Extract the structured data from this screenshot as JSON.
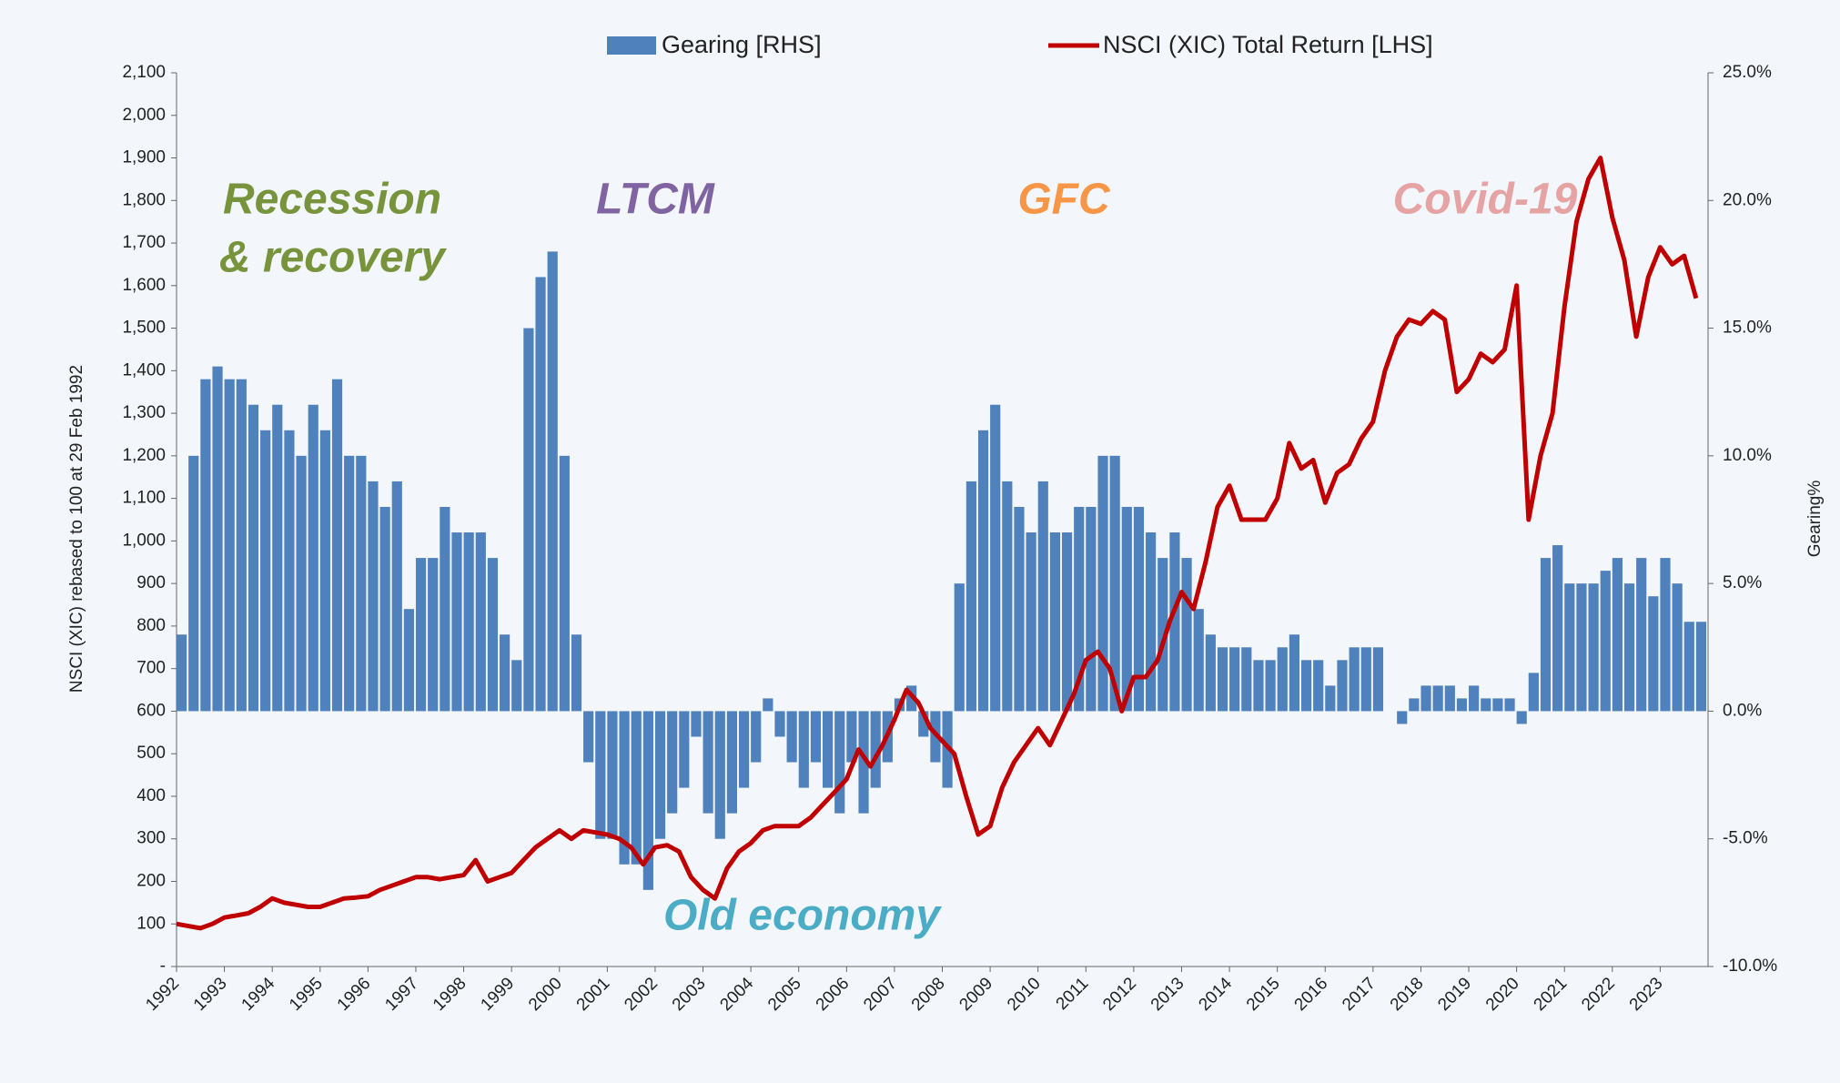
{
  "chart_data": {
    "type": "bar-line",
    "legend_position": "top",
    "y_label": "NSCI (XIC) rebased to 100 at 29 Feb 1992",
    "y2_label": "Gearing%",
    "annotations": [
      {
        "lines": [
          "Recession",
          "& recovery"
        ],
        "color": "#77933c"
      },
      {
        "lines": [
          "LTCM"
        ],
        "color": "#8064a2"
      },
      {
        "lines": [
          "GFC"
        ],
        "color": "#f79646"
      },
      {
        "lines": [
          "Covid-19"
        ],
        "color": "#e6a3a3"
      },
      {
        "lines": [
          "Old economy"
        ],
        "color": "#4bacc6"
      }
    ],
    "xlim": [
      1992,
      2024
    ],
    "xticks": [
      1992,
      1993,
      1994,
      1995,
      1996,
      1997,
      1998,
      1999,
      2000,
      2001,
      2002,
      2003,
      2004,
      2005,
      2006,
      2007,
      2008,
      2009,
      2010,
      2011,
      2012,
      2013,
      2014,
      2015,
      2016,
      2017,
      2018,
      2019,
      2020,
      2021,
      2022,
      2023
    ],
    "ylim": [
      0,
      2100
    ],
    "yticks": [
      {
        "value": 0,
        "label": "-"
      },
      100,
      200,
      300,
      400,
      500,
      600,
      700,
      800,
      900,
      {
        "value": 1000,
        "label": "1,000"
      },
      {
        "value": 1100,
        "label": "1,100"
      },
      {
        "value": 1200,
        "label": "1,200"
      },
      {
        "value": 1300,
        "label": "1,300"
      },
      {
        "value": 1400,
        "label": "1,400"
      },
      {
        "value": 1500,
        "label": "1,500"
      },
      {
        "value": 1600,
        "label": "1,600"
      },
      {
        "value": 1700,
        "label": "1,700"
      },
      {
        "value": 1800,
        "label": "1,800"
      },
      {
        "value": 1900,
        "label": "1,900"
      },
      {
        "value": 2000,
        "label": "2,000"
      },
      {
        "value": 2100,
        "label": "2,100"
      }
    ],
    "y2lim": [
      -10,
      25
    ],
    "y2ticks": [
      {
        "value": -10,
        "label": "-10.0%"
      },
      {
        "value": -5,
        "label": "-5.0%"
      },
      {
        "value": 0,
        "label": "0.0%"
      },
      {
        "value": 5,
        "label": "5.0%"
      },
      {
        "value": 10,
        "label": "10.0%"
      },
      {
        "value": 15,
        "label": "15.0%"
      },
      {
        "value": 20,
        "label": "20.0%"
      },
      {
        "value": 25,
        "label": "25.0%"
      }
    ],
    "x": [
      1992,
      1992.25,
      1992.5,
      1992.75,
      1993,
      1993.25,
      1993.5,
      1993.75,
      1994,
      1994.25,
      1994.5,
      1994.75,
      1995,
      1995.25,
      1995.5,
      1995.75,
      1996,
      1996.25,
      1996.5,
      1996.75,
      1997,
      1997.25,
      1997.5,
      1997.75,
      1998,
      1998.25,
      1998.5,
      1998.75,
      1999,
      1999.25,
      1999.5,
      1999.75,
      2000,
      2000.25,
      2000.5,
      2000.75,
      2001,
      2001.25,
      2001.5,
      2001.75,
      2002,
      2002.25,
      2002.5,
      2002.75,
      2003,
      2003.25,
      2003.5,
      2003.75,
      2004,
      2004.25,
      2004.5,
      2004.75,
      2005,
      2005.25,
      2005.5,
      2005.75,
      2006,
      2006.25,
      2006.5,
      2006.75,
      2007,
      2007.25,
      2007.5,
      2007.75,
      2008,
      2008.25,
      2008.5,
      2008.75,
      2009,
      2009.25,
      2009.5,
      2009.75,
      2010,
      2010.25,
      2010.5,
      2010.75,
      2011,
      2011.25,
      2011.5,
      2011.75,
      2012,
      2012.25,
      2012.5,
      2012.75,
      2013,
      2013.25,
      2013.5,
      2013.75,
      2014,
      2014.25,
      2014.5,
      2014.75,
      2015,
      2015.25,
      2015.5,
      2015.75,
      2016,
      2016.25,
      2016.5,
      2016.75,
      2017,
      2017.25,
      2017.5,
      2017.75,
      2018,
      2018.25,
      2018.5,
      2018.75,
      2019,
      2019.25,
      2019.5,
      2019.75,
      2020,
      2020.25,
      2020.5,
      2020.75,
      2021,
      2021.25,
      2021.5,
      2021.75,
      2022,
      2022.25,
      2022.5,
      2022.75,
      2023,
      2023.25,
      2023.5,
      2023.75
    ],
    "series": [
      {
        "name": "Gearing [RHS]",
        "type": "bar",
        "axis": "y2",
        "color": "#4f81bd",
        "values": [
          3,
          10,
          13,
          13.5,
          13,
          13,
          12,
          11,
          12,
          11,
          10,
          12,
          11,
          13,
          10,
          10,
          9,
          8,
          9,
          4,
          6,
          6,
          8,
          7,
          7,
          7,
          6,
          3,
          2,
          15,
          17,
          18,
          10,
          3,
          -2,
          -5,
          -5,
          -6,
          -6,
          -7,
          -5,
          -4,
          -3,
          -1,
          -4,
          -5,
          -4,
          -3,
          -2,
          0.5,
          -1,
          -2,
          -3,
          -2,
          -3,
          -4,
          -2,
          -4,
          -3,
          -2,
          0.5,
          1,
          -1,
          -2,
          -3,
          5,
          9,
          11,
          12,
          9,
          8,
          7,
          9,
          7,
          7,
          8,
          8,
          10,
          10,
          8,
          8,
          7,
          6,
          7,
          6,
          4,
          3,
          2.5,
          2.5,
          2.5,
          2,
          2,
          2.5,
          3,
          2,
          2,
          1,
          2,
          2.5,
          2.5,
          2.5,
          0,
          -0.5,
          0.5,
          1,
          1,
          1,
          0.5,
          1,
          0.5,
          0.5,
          0.5,
          -0.5,
          1.5,
          6,
          6.5,
          5,
          5,
          5,
          5.5,
          6,
          5,
          6,
          4.5,
          6,
          5,
          3.5,
          3.5
        ]
      },
      {
        "name": "NSCI (XIC) Total Return [LHS]",
        "type": "line",
        "color": "#c00000",
        "values": [
          100,
          95,
          90,
          100,
          115,
          120,
          125,
          140,
          160,
          150,
          145,
          140,
          140,
          150,
          160,
          162,
          165,
          180,
          190,
          200,
          210,
          210,
          205,
          210,
          215,
          250,
          200,
          210,
          220,
          250,
          280,
          300,
          320,
          300,
          320,
          315,
          310,
          300,
          280,
          240,
          280,
          285,
          270,
          210,
          180,
          160,
          230,
          270,
          290,
          320,
          330,
          330,
          330,
          350,
          380,
          410,
          440,
          510,
          470,
          520,
          580,
          650,
          620,
          560,
          530,
          500,
          400,
          310,
          330,
          420,
          480,
          520,
          560,
          520,
          580,
          640,
          720,
          740,
          700,
          600,
          680,
          680,
          720,
          810,
          880,
          840,
          950,
          1080,
          1130,
          1050,
          1050,
          1050,
          1100,
          1230,
          1170,
          1190,
          1090,
          1160,
          1180,
          1240,
          1280,
          1400,
          1480,
          1520,
          1510,
          1540,
          1520,
          1350,
          1380,
          1440,
          1420,
          1450,
          1600,
          1050,
          1200,
          1300,
          1550,
          1750,
          1850,
          1900,
          1760,
          1660,
          1480,
          1620,
          1690,
          1650,
          1670,
          1570
        ]
      }
    ]
  }
}
